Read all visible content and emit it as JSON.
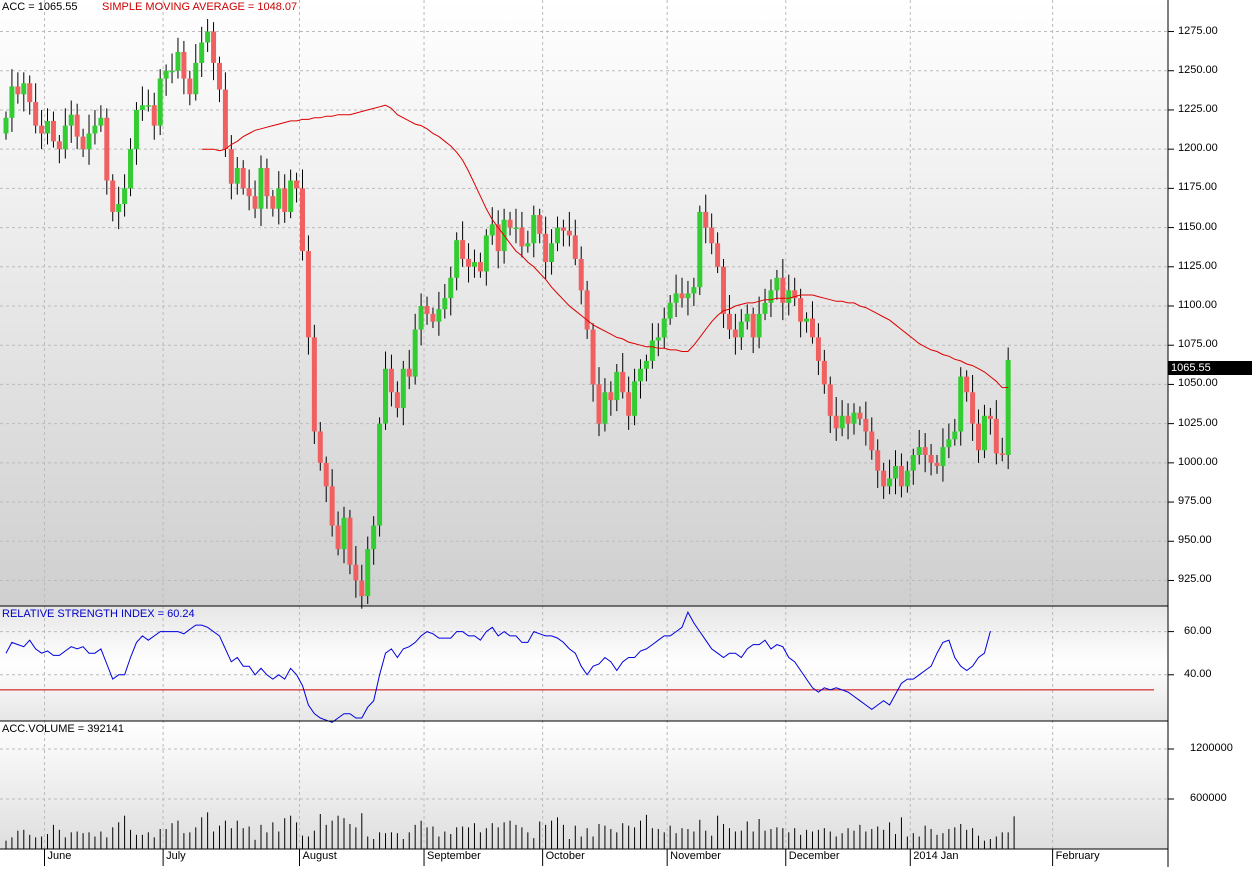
{
  "chart_data": {
    "type": "candlestick",
    "symbol_label": "ACC = 1065.55",
    "sma_label": "SIMPLE MOVING AVERAGE = 1048.07",
    "rsi_label": "RELATIVE STRENGTH INDEX = 60.24",
    "volume_label": "ACC.VOLUME = 392141",
    "last_price": "1065.55",
    "colors": {
      "up": "#33cc33",
      "down": "#f06060",
      "sma": "#dd0000",
      "rsi": "#0000dd",
      "rsi_ref": "#cc0000",
      "volume": "#000000"
    },
    "price_axis": {
      "ticks": [
        "925.00",
        "950.00",
        "975.00",
        "1000.00",
        "1025.00",
        "1050.00",
        "1075.00",
        "1100.00",
        "1125.00",
        "1150.00",
        "1175.00",
        "1200.00",
        "1225.00",
        "1250.00",
        "1275.00"
      ],
      "min": 910,
      "max": 1290
    },
    "rsi_axis": {
      "ticks": [
        "40.00",
        "60.00"
      ],
      "min": 20,
      "max": 70,
      "reference_level": 33
    },
    "volume_axis": {
      "ticks": [
        "600000",
        "1200000"
      ],
      "max": 1500000
    },
    "months": [
      "June",
      "July",
      "August",
      "September",
      "October",
      "November",
      "December",
      "2014 Jan",
      "February"
    ],
    "month_start_index": [
      7,
      27,
      50,
      71,
      91,
      112,
      132,
      153,
      177
    ],
    "close": [
      1220,
      1240,
      1235,
      1242,
      1230,
      1215,
      1210,
      1218,
      1205,
      1200,
      1215,
      1222,
      1208,
      1200,
      1210,
      1215,
      1220,
      1180,
      1160,
      1165,
      1175,
      1200,
      1225,
      1228,
      1228,
      1215,
      1245,
      1250,
      1250,
      1262,
      1245,
      1235,
      1255,
      1268,
      1275,
      1255,
      1238,
      1200,
      1178,
      1188,
      1175,
      1170,
      1162,
      1188,
      1170,
      1162,
      1175,
      1160,
      1180,
      1175,
      1135,
      1080,
      1020,
      1000,
      985,
      960,
      945,
      965,
      935,
      925,
      915,
      945,
      960,
      1025,
      1060,
      1045,
      1035,
      1060,
      1055,
      1085,
      1100,
      1095,
      1090,
      1098,
      1105,
      1118,
      1142,
      1130,
      1125,
      1128,
      1122,
      1145,
      1152,
      1135,
      1155,
      1150,
      1150,
      1138,
      1140,
      1158,
      1146,
      1128,
      1140,
      1150,
      1148,
      1145,
      1130,
      1110,
      1085,
      1050,
      1025,
      1045,
      1040,
      1058,
      1045,
      1030,
      1052,
      1060,
      1065,
      1078,
      1080,
      1092,
      1102,
      1108,
      1105,
      1108,
      1112,
      1160,
      1150,
      1140,
      1125,
      1095,
      1085,
      1080,
      1090,
      1095,
      1080,
      1095,
      1102,
      1110,
      1118,
      1102,
      1110,
      1105,
      1090,
      1092,
      1080,
      1065,
      1050,
      1030,
      1022,
      1030,
      1025,
      1032,
      1028,
      1020,
      1008,
      995,
      985,
      990,
      998,
      985,
      995,
      1005,
      1010,
      1005,
      1000,
      998,
      1010,
      1015,
      1020,
      1055,
      1045,
      1025,
      1008,
      1030,
      1028,
      1006,
      1005,
      1065.55
    ],
    "sma": [
      1200,
      1200,
      1200,
      1199,
      1200,
      1203,
      1205,
      1208,
      1210,
      1212,
      1213,
      1214,
      1215,
      1216,
      1217,
      1218,
      1218,
      1219,
      1219,
      1220,
      1220,
      1221,
      1221,
      1222,
      1222,
      1222,
      1223,
      1224,
      1225,
      1226,
      1227,
      1228,
      1226,
      1222,
      1220,
      1218,
      1216,
      1215,
      1213,
      1210,
      1208,
      1205,
      1202,
      1198,
      1193,
      1186,
      1178,
      1170,
      1162,
      1155,
      1150,
      1145,
      1140,
      1135,
      1132,
      1128,
      1125,
      1121,
      1117,
      1112,
      1108,
      1104,
      1100,
      1097,
      1094,
      1091,
      1088,
      1086,
      1084,
      1082,
      1080,
      1079,
      1077,
      1076,
      1075,
      1074,
      1074,
      1073,
      1073,
      1072,
      1072,
      1071,
      1071,
      1075,
      1080,
      1085,
      1090,
      1094,
      1097,
      1098,
      1100,
      1101,
      1102,
      1102,
      1103,
      1104,
      1104,
      1105,
      1105,
      1105,
      1106,
      1107,
      1107,
      1107,
      1106,
      1105,
      1104,
      1103,
      1103,
      1102,
      1102,
      1100,
      1099,
      1097,
      1095,
      1093,
      1091,
      1088,
      1085,
      1082,
      1079,
      1076,
      1074,
      1072,
      1071,
      1069,
      1068,
      1066,
      1065,
      1063,
      1062,
      1060,
      1058,
      1055,
      1052,
      1048,
      1048.07
    ],
    "rsi": [
      50,
      55,
      54,
      53,
      56,
      52,
      50,
      51,
      49,
      49,
      51,
      53,
      52,
      53,
      50,
      50,
      52,
      45,
      38,
      40,
      40,
      48,
      55,
      58,
      56,
      58,
      60,
      60,
      60,
      60,
      59,
      61,
      63,
      63,
      62,
      60,
      58,
      52,
      46,
      48,
      44,
      44,
      40,
      43,
      40,
      38,
      40,
      38,
      43,
      40,
      35,
      26,
      22,
      20,
      19,
      18,
      20,
      22,
      22,
      20,
      20,
      25,
      28,
      40,
      50,
      52,
      48,
      52,
      53,
      55,
      58,
      60,
      59,
      57,
      57,
      57,
      60,
      60,
      58,
      58,
      56,
      60,
      62,
      58,
      60,
      58,
      58,
      55,
      55,
      60,
      59,
      58,
      58,
      57,
      55,
      52,
      50,
      44,
      40,
      44,
      45,
      48,
      46,
      42,
      46,
      48,
      48,
      51,
      52,
      54,
      56,
      58,
      58,
      60,
      62,
      69,
      64,
      60,
      56,
      52,
      50,
      48,
      50,
      50,
      48,
      52,
      54,
      54,
      56,
      52,
      54,
      53,
      48,
      46,
      42,
      38,
      34,
      32,
      34,
      33,
      34,
      33,
      32,
      30,
      28,
      26,
      24,
      26,
      28,
      26,
      31,
      36,
      38,
      38,
      40,
      42,
      44,
      50,
      55,
      56,
      48,
      44,
      42,
      44,
      48,
      50,
      60.24
    ],
    "volume": [
      100000,
      140000,
      220000,
      230000,
      170000,
      140000,
      150000,
      180000,
      290000,
      230000,
      140000,
      200000,
      210000,
      190000,
      200000,
      150000,
      210000,
      140000,
      260000,
      320000,
      400000,
      230000,
      170000,
      170000,
      200000,
      140000,
      240000,
      240000,
      310000,
      340000,
      190000,
      200000,
      260000,
      380000,
      440000,
      210000,
      280000,
      340000,
      250000,
      340000,
      250000,
      270000,
      110000,
      290000,
      200000,
      320000,
      210000,
      370000,
      400000,
      320000,
      160000,
      150000,
      220000,
      420000,
      290000,
      340000,
      400000,
      370000,
      300000,
      260000,
      430000,
      150000,
      120000,
      200000,
      190000,
      200000,
      190000,
      120000,
      200000,
      290000,
      340000,
      260000,
      270000,
      150000,
      210000,
      180000,
      260000,
      270000,
      260000,
      310000,
      200000,
      250000,
      310000,
      260000,
      320000,
      340000,
      290000,
      260000,
      200000,
      130000,
      330000,
      290000,
      340000,
      380000,
      290000,
      120000,
      280000,
      150000,
      250000,
      150000,
      300000,
      280000,
      240000,
      200000,
      310000,
      280000,
      260000,
      340000,
      410000,
      250000,
      240000,
      200000,
      280000,
      190000,
      250000,
      240000,
      210000,
      350000,
      220000,
      160000,
      400000,
      300000,
      250000,
      210000,
      220000,
      330000,
      210000,
      360000,
      220000,
      240000,
      260000,
      250000,
      200000,
      250000,
      170000,
      230000,
      210000,
      230000,
      250000,
      210000,
      150000,
      190000,
      250000,
      220000,
      290000,
      210000,
      240000,
      270000,
      230000,
      320000,
      180000,
      380000,
      150000,
      190000,
      150000,
      280000,
      240000,
      170000,
      190000,
      240000,
      260000,
      300000,
      230000,
      250000,
      160000,
      100000,
      120000,
      150000,
      200000,
      200000,
      392141
    ]
  }
}
